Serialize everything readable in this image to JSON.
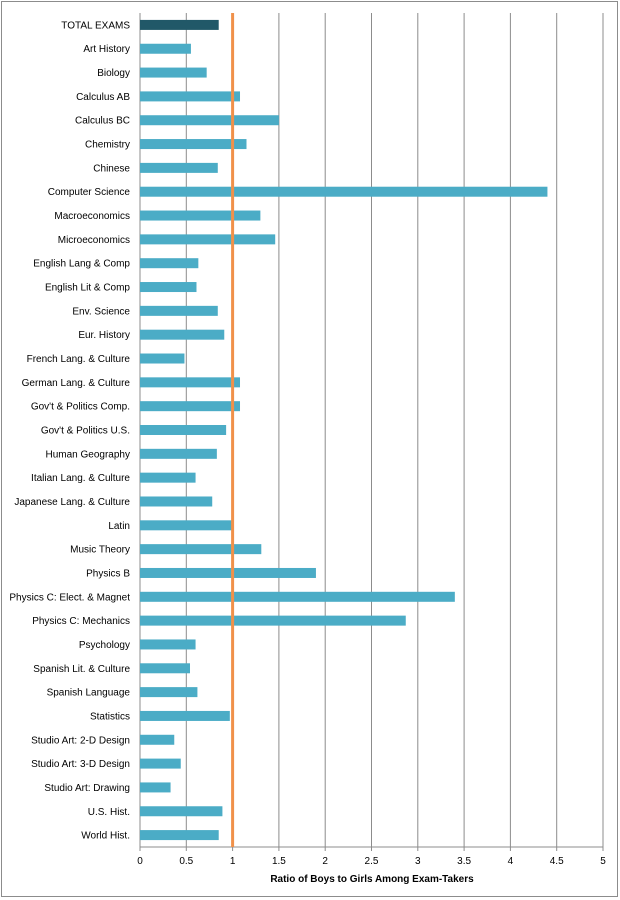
{
  "chart_data": {
    "type": "bar",
    "orientation": "horizontal",
    "title": "",
    "xlabel": "Ratio of Boys to Girls Among Exam-Takers",
    "ylabel": "",
    "xlim": [
      0,
      5
    ],
    "xticks": [
      "0",
      "0.5",
      "1",
      "1.5",
      "2",
      "2.5",
      "3",
      "3.5",
      "4",
      "4.5",
      "5"
    ],
    "grid": true,
    "reference_line": {
      "value": 1,
      "color": "#f0914a"
    },
    "colors": {
      "bar": "#4bacc6",
      "highlight": "#215868"
    },
    "categories": [
      "TOTAL EXAMS",
      "Art History",
      "Biology",
      "Calculus AB",
      "Calculus BC",
      "Chemistry",
      "Chinese",
      "Computer Science",
      "Macroeconomics",
      "Microeconomics",
      "English Lang & Comp",
      "English Lit & Comp",
      "Env. Science",
      "Eur. History",
      "French Lang. & Culture",
      "German Lang. & Culture",
      "Gov't & Politics Comp.",
      "Gov't & Politics U.S.",
      "Human Geography",
      "Italian Lang. & Culture",
      "Japanese Lang. & Culture",
      "Latin",
      "Music Theory",
      "Physics B",
      "Physics C: Elect. & Magnet",
      "Physics C: Mechanics",
      "Psychology",
      "Spanish Lit. & Culture",
      "Spanish Language",
      "Statistics",
      "Studio Art: 2-D Design",
      "Studio Art: 3-D Design",
      "Studio Art: Drawing",
      "U.S. Hist.",
      "World Hist."
    ],
    "values": [
      0.85,
      0.55,
      0.72,
      1.08,
      1.5,
      1.15,
      0.84,
      4.4,
      1.3,
      1.46,
      0.63,
      0.61,
      0.84,
      0.91,
      0.48,
      1.08,
      1.08,
      0.93,
      0.83,
      0.6,
      0.78,
      1.0,
      1.31,
      1.9,
      3.4,
      2.87,
      0.6,
      0.54,
      0.62,
      0.97,
      0.37,
      0.44,
      0.33,
      0.89,
      0.85
    ],
    "highlight_index": 0
  }
}
